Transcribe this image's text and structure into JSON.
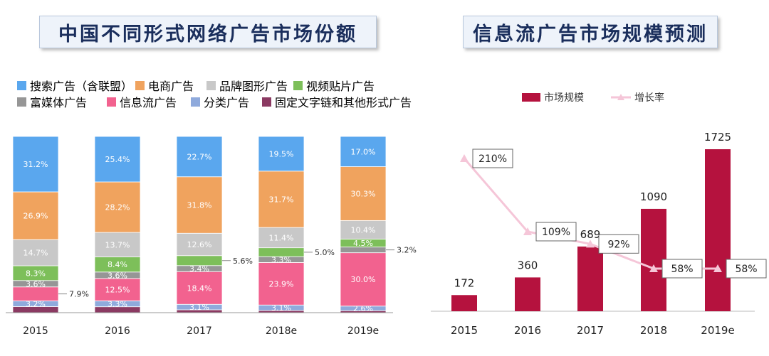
{
  "left_title": "中国不同形式网络广告市场份额",
  "right_title": "信息流广告市场规模预测",
  "chart_data": [
    {
      "type": "bar",
      "stacked": true,
      "normalized": true,
      "categories": [
        "2015",
        "2016",
        "2017",
        "2018e",
        "2019e"
      ],
      "series": [
        {
          "name": "固定文字链和其他形式广告",
          "color": "#8b3a62",
          "values": [
            3.4,
            3.3,
            1.6,
            1.2,
            1.1
          ],
          "labels": [
            "",
            "",
            "",
            "",
            ""
          ]
        },
        {
          "name": "分类广告",
          "color": "#8faadc",
          "values": [
            3.2,
            3.3,
            3.1,
            3.1,
            2.6
          ],
          "labels": [
            "3.2%",
            "3.3%",
            "3.1%",
            "3.1%",
            "2.6%"
          ]
        },
        {
          "name": "信息流广告",
          "color": "#f2628f",
          "values": [
            7.9,
            12.5,
            18.4,
            23.9,
            30.0
          ],
          "labels": [
            "",
            "12.5%",
            "18.4%",
            "23.9%",
            "30.0%"
          ]
        },
        {
          "name": "富媒体广告",
          "color": "#969696",
          "values": [
            3.6,
            3.6,
            3.4,
            3.3,
            3.2
          ],
          "labels": [
            "3.6%",
            "3.6%",
            "3.4%",
            "3.3%",
            ""
          ]
        },
        {
          "name": "视频贴片广告",
          "color": "#7dbf5a",
          "values": [
            8.3,
            8.4,
            5.6,
            5.0,
            4.5
          ],
          "labels": [
            "8.3%",
            "8.4%",
            "",
            "",
            "4.5%"
          ]
        },
        {
          "name": "品牌图形广告",
          "color": "#c8c8c8",
          "values": [
            14.7,
            13.7,
            12.6,
            11.4,
            10.4
          ],
          "labels": [
            "14.7%",
            "13.7%",
            "12.6%",
            "11.4%",
            "10.4%"
          ]
        },
        {
          "name": "电商广告",
          "color": "#f0a35e",
          "values": [
            26.9,
            28.2,
            31.8,
            31.7,
            30.3
          ],
          "labels": [
            "26.9%",
            "28.2%",
            "31.8%",
            "31.7%",
            "30.3%"
          ]
        },
        {
          "name": "搜索广告（含联盟）",
          "color": "#5aa7ee",
          "values": [
            31.2,
            25.4,
            22.7,
            19.5,
            17.0
          ],
          "labels": [
            "31.2%",
            "25.4%",
            "22.7%",
            "19.5%",
            "17.0%"
          ]
        }
      ],
      "callouts": [
        {
          "category": "2015",
          "series": "信息流广告",
          "text": "7.9%"
        },
        {
          "category": "2017",
          "series": "视频贴片广告",
          "text": "5.6%"
        },
        {
          "category": "2018e",
          "series": "视频贴片广告",
          "text": "5.0%"
        },
        {
          "category": "2019e",
          "series": "富媒体广告",
          "text": "3.2%"
        }
      ],
      "legend_order": [
        "搜索广告（含联盟）",
        "电商广告",
        "品牌图形广告",
        "视频贴片广告",
        "富媒体广告",
        "信息流广告",
        "分类广告",
        "固定文字链和其他形式广告"
      ],
      "ylim": [
        0,
        100
      ]
    },
    {
      "type": "bar",
      "categories": [
        "2015",
        "2016",
        "2017",
        "2018",
        "2019e"
      ],
      "series": [
        {
          "name": "市场规模",
          "color": "#b5123e",
          "values": [
            172,
            360,
            689,
            1090,
            1725
          ],
          "labels": [
            "172",
            "360",
            "689",
            "1090",
            "1725"
          ]
        },
        {
          "name": "增长率",
          "type": "line",
          "color": "#f5c6d8",
          "values": [
            210,
            109,
            92,
            58,
            58
          ],
          "labels": [
            "210%",
            "109%",
            "92%",
            "58%",
            "58%"
          ]
        }
      ],
      "bar_ylim": [
        0,
        1800
      ],
      "line_ylim": [
        0,
        300
      ]
    }
  ]
}
